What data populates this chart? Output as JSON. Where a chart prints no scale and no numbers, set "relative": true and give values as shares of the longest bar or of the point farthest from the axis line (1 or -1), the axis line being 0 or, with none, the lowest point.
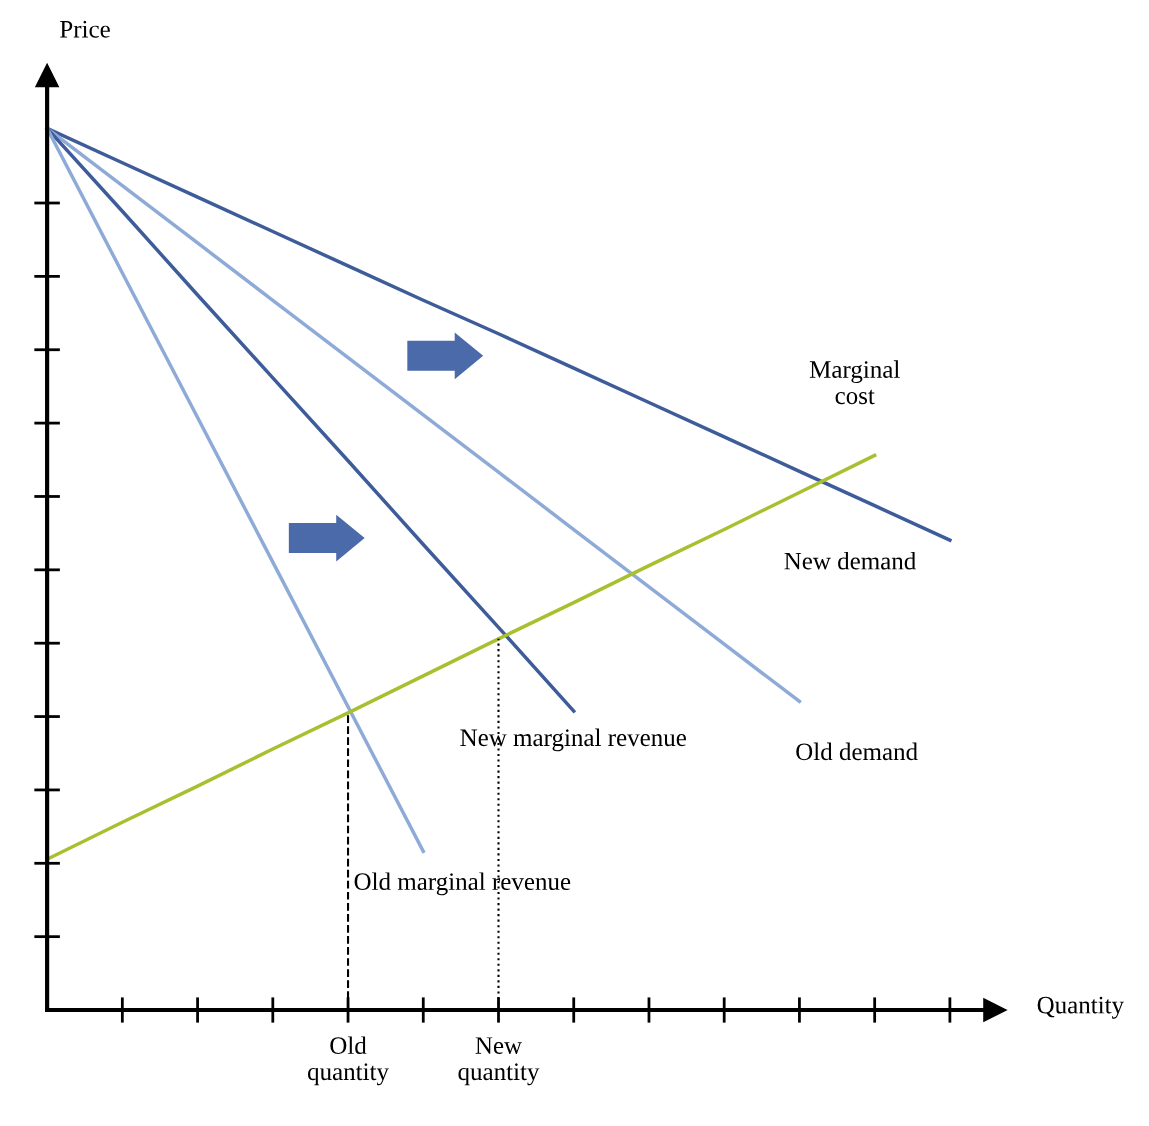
{
  "chart_data": {
    "type": "line",
    "relative": true,
    "xlabel": "Quantity",
    "ylabel": "Price",
    "categories": [
      null,
      null,
      null,
      null,
      "Old\nquantity",
      null,
      "New\nquantity",
      null,
      null,
      null,
      null,
      null,
      null
    ],
    "series": [
      {
        "color": "#3d5c99",
        "values": [
          1,
          0.961,
          0.922,
          0.883,
          0.844,
          0.805,
          0.767,
          0.728,
          0.689,
          0.65,
          0.611,
          0.572,
          0.533
        ]
      },
      {
        "color": "#8eaad6",
        "values": [
          1,
          0.935,
          0.87,
          0.805,
          0.74,
          0.675,
          0.61,
          0.545,
          0.48,
          0.415,
          0.35,
          null,
          null
        ]
      },
      {
        "color": "#3d5c99",
        "values": [
          1,
          0.906,
          0.811,
          0.717,
          0.623,
          0.528,
          0.434,
          0.339,
          null,
          null,
          null,
          null,
          null
        ]
      },
      {
        "color": "#8eaad6",
        "values": [
          1,
          0.836,
          0.672,
          0.508,
          0.344,
          0.18,
          null,
          null,
          null,
          null,
          null,
          null,
          null
        ]
      },
      {
        "color": "#a8c030",
        "values": [
          0.171,
          0.213,
          0.254,
          0.296,
          0.337,
          0.379,
          0.421,
          0.462,
          0.504,
          0.545,
          0.587,
          0.629,
          null
        ]
      }
    ],
    "ref_lines": [
      {
        "axis": "x",
        "value": "Old\nquantity",
        "line_style": "dashed",
        "color": "#000000"
      },
      {
        "axis": "x",
        "value": "New\nquantity",
        "line_style": "dotted",
        "color": "#000000"
      }
    ],
    "annotations": [
      "Marginal\ncost",
      "New demand",
      "Old demand",
      "New marginal revenue",
      "Old marginal revenue"
    ]
  }
}
